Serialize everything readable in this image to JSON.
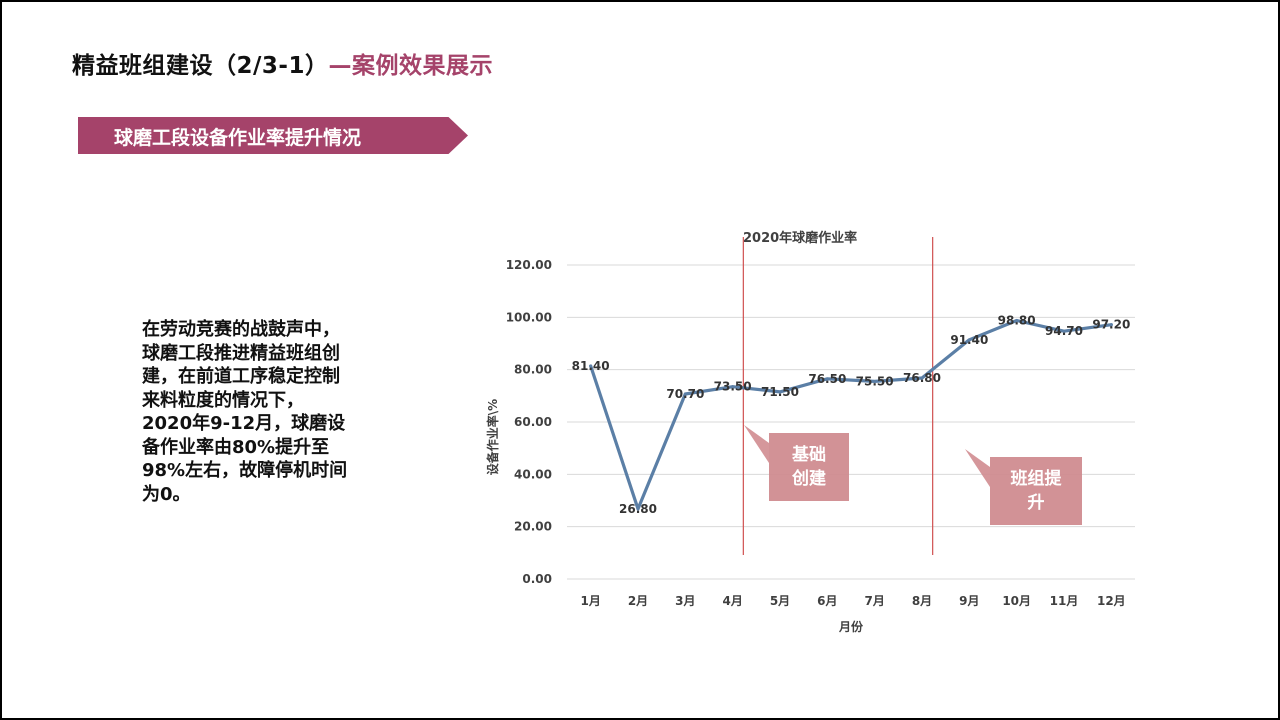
{
  "slide": {
    "title_main": "精益班组建设（2/3-1）",
    "title_accent": "—案例效果展示",
    "banner": "球磨工段设备作业率提升情况",
    "body_text": "在劳动竞赛的战鼓声中，球磨工段推进精益班组创建，在前道工序稳定控制来料粒度的情况下，2020年9-12月，球磨设备作业率由80%提升至98%左右，故障停机时间为0。"
  },
  "colors": {
    "accent": "#a5436a",
    "line": "#5b7fa6",
    "marker_line": "#d05050",
    "callout_fill": "#d08c90",
    "grid": "#d9d9d9"
  },
  "chart_data": {
    "type": "line",
    "title": "2020年球磨作业率",
    "xlabel": "月份",
    "ylabel": "设备作业率\\%",
    "categories": [
      "1月",
      "2月",
      "3月",
      "4月",
      "5月",
      "6月",
      "7月",
      "8月",
      "9月",
      "10月",
      "11月",
      "12月"
    ],
    "values": [
      81.4,
      26.8,
      70.7,
      73.5,
      71.5,
      76.5,
      75.5,
      76.8,
      91.4,
      98.8,
      94.7,
      97.2
    ],
    "labels": [
      "81.40",
      "26.80",
      "70.70",
      "73.50",
      "71.50",
      "76.50",
      "75.50",
      "76.80",
      "91.40",
      "98.80",
      "94.70",
      "97.20"
    ],
    "ylim": [
      0,
      120
    ],
    "yticks": [
      "0.00",
      "20.00",
      "40.00",
      "60.00",
      "80.00",
      "100.00",
      "120.00"
    ],
    "grid": true,
    "annotations": [
      {
        "text_lines": [
          "基础",
          "创建"
        ],
        "after_category": "4月"
      },
      {
        "text_lines": [
          "班组提",
          "升"
        ],
        "after_category": "8月"
      }
    ]
  }
}
